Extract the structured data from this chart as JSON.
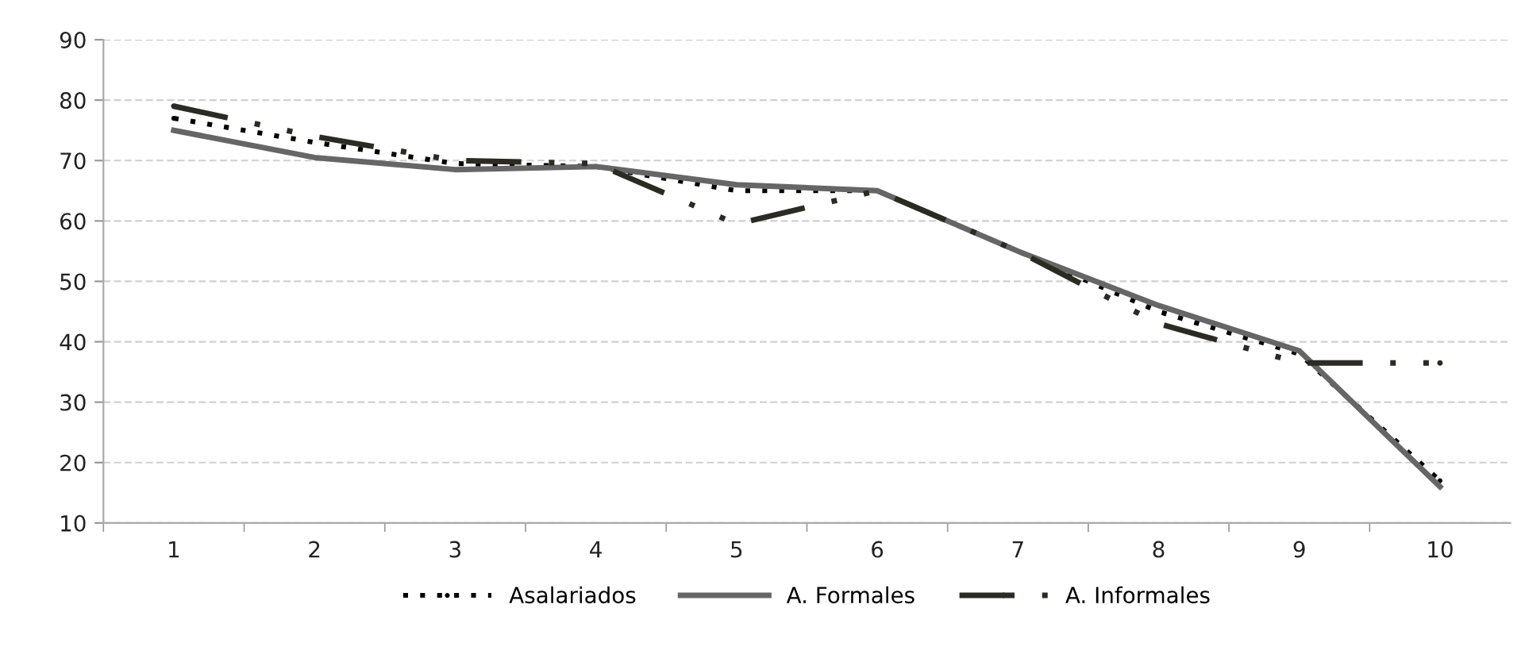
{
  "chart_data": {
    "type": "line",
    "categories": [
      "1",
      "2",
      "3",
      "4",
      "5",
      "6",
      "7",
      "8",
      "9",
      "10"
    ],
    "series": [
      {
        "name": "Asalariados",
        "color": "#000000",
        "line_style": "dotted",
        "values": [
          77,
          73,
          69.5,
          69,
          65,
          65,
          55,
          45,
          38,
          17
        ]
      },
      {
        "name": "A. Formales",
        "color": "#666666",
        "line_style": "solid",
        "values": [
          75,
          70.5,
          68.5,
          69,
          66,
          65,
          55,
          46,
          38.5,
          16
        ]
      },
      {
        "name": "A. Informales",
        "color": "#2b2b24",
        "line_style": "dashdot",
        "values": [
          79,
          74,
          70,
          69.5,
          59.5,
          65,
          55,
          43,
          36.5,
          36.5
        ]
      }
    ],
    "ylim": [
      10,
      90
    ],
    "yticks": [
      10,
      20,
      30,
      40,
      50,
      60,
      70,
      80,
      90
    ],
    "grid": "y",
    "legend": "bottom",
    "marker": "none"
  }
}
